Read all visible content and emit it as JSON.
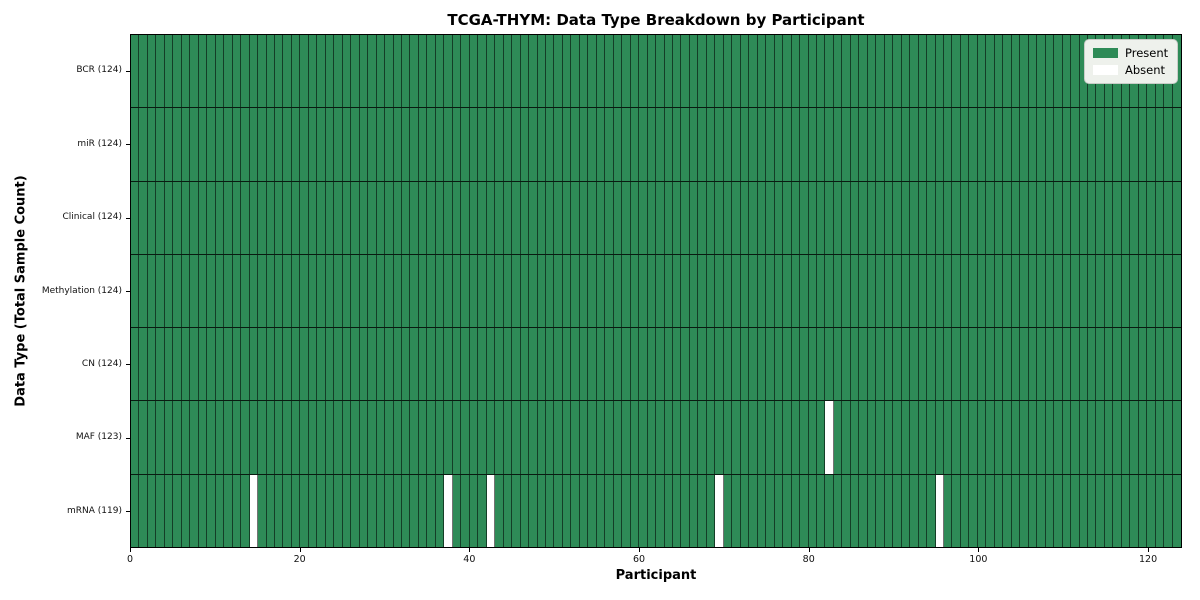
{
  "chart_data": {
    "type": "heatmap",
    "title": "TCGA-THYM: Data Type Breakdown by Participant",
    "xlabel": "Participant",
    "ylabel": "Data Type (Total Sample Count)",
    "n_participants": 124,
    "xlim": [
      0,
      124
    ],
    "x_ticks": [
      0,
      20,
      40,
      60,
      80,
      100,
      120
    ],
    "rows": [
      {
        "name": "BCR",
        "label": "BCR (124)",
        "count": 124,
        "absent": []
      },
      {
        "name": "miR",
        "label": "miR (124)",
        "count": 124,
        "absent": []
      },
      {
        "name": "Clinical",
        "label": "Clinical (124)",
        "count": 124,
        "absent": []
      },
      {
        "name": "Methylation",
        "label": "Methylation (124)",
        "count": 124,
        "absent": []
      },
      {
        "name": "CN",
        "label": "CN (124)",
        "count": 124,
        "absent": []
      },
      {
        "name": "MAF",
        "label": "MAF (123)",
        "count": 123,
        "absent": [
          82
        ]
      },
      {
        "name": "mRNA",
        "label": "mRNA (119)",
        "count": 119,
        "absent": [
          14,
          37,
          42,
          69,
          95
        ]
      }
    ],
    "legend": [
      {
        "label": "Present",
        "color": "#2E8B57"
      },
      {
        "label": "Absent",
        "color": "#FFFFFF"
      }
    ],
    "colors": {
      "present": "#2E8B57",
      "absent": "#FFFFFF",
      "cell_edge": "rgba(0,0,0,0.55)",
      "row_edge": "rgba(0,0,0,0.80)",
      "legend_bg": "#EEF1EC",
      "legend_border": "#C9CDC8"
    },
    "legend_position": "upper right",
    "grid": "cell-borders"
  }
}
